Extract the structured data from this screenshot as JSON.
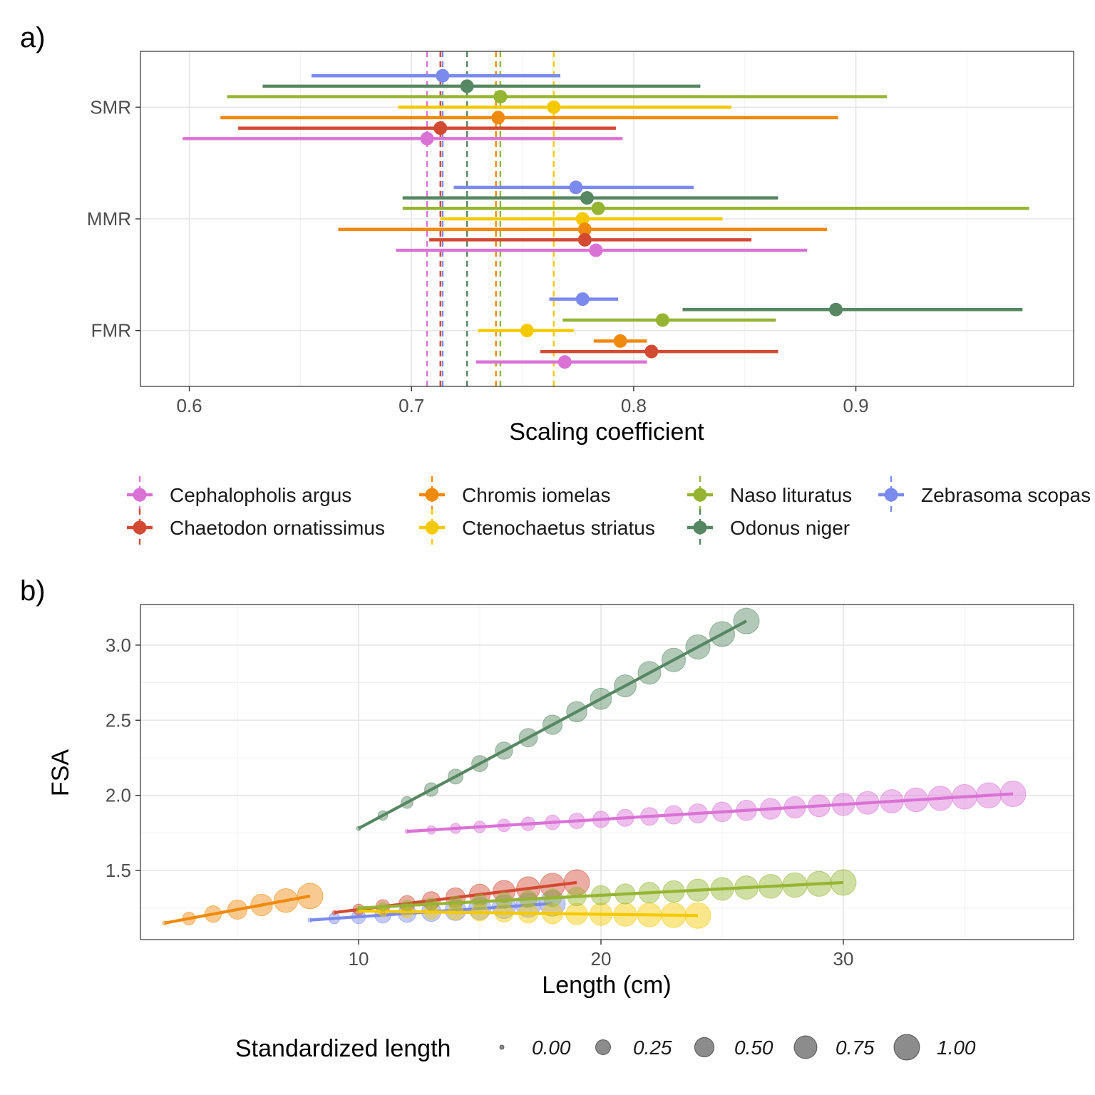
{
  "colors": {
    "Cephalopholis argus": "#DA72D6",
    "Chaetodon ornatissimus": "#D24A32",
    "Chromis iomelas": "#F08A0C",
    "Ctenochaetus striatus": "#F5C900",
    "Naso lituratus": "#95B532",
    "Odonus niger": "#568762",
    "Zebrasoma scopas": "#7A8AED"
  },
  "chart_data": [
    {
      "type": "forest",
      "panel_label": "a)",
      "xlabel": "Scaling coefficient",
      "ylabel": "",
      "xlim": [
        0.578,
        0.998
      ],
      "xticks": [
        0.6,
        0.7,
        0.8,
        0.9
      ],
      "xtick_labels": [
        "0.6",
        "0.7",
        "0.8",
        "0.9"
      ],
      "categories": [
        "SMR",
        "MMR",
        "FMR"
      ],
      "species_order": [
        "Zebrasoma scopas",
        "Odonus niger",
        "Naso lituratus",
        "Ctenochaetus striatus",
        "Chromis iomelas",
        "Chaetodon ornatissimus",
        "Cephalopholis argus"
      ],
      "series": [
        {
          "name": "Cephalopholis argus",
          "SMR": [
            0.707,
            0.597,
            0.795
          ],
          "MMR": [
            0.783,
            0.693,
            0.878
          ],
          "FMR": [
            0.769,
            0.729,
            0.806
          ],
          "ref_line": 0.707
        },
        {
          "name": "Chaetodon ornatissimus",
          "SMR": [
            0.713,
            0.622,
            0.792
          ],
          "MMR": [
            0.778,
            0.708,
            0.853
          ],
          "FMR": [
            0.808,
            0.758,
            0.865
          ],
          "ref_line": 0.713
        },
        {
          "name": "Chromis iomelas",
          "SMR": [
            0.739,
            0.614,
            0.892
          ],
          "MMR": [
            0.778,
            0.667,
            0.887
          ],
          "FMR": [
            0.794,
            0.782,
            0.806
          ],
          "ref_line": 0.738
        },
        {
          "name": "Ctenochaetus striatus",
          "SMR": [
            0.764,
            0.694,
            0.844
          ],
          "MMR": [
            0.777,
            0.713,
            0.84
          ],
          "FMR": [
            0.752,
            0.73,
            0.773
          ],
          "ref_line": 0.764
        },
        {
          "name": "Naso lituratus",
          "SMR": [
            0.74,
            0.617,
            0.914
          ],
          "MMR": [
            0.784,
            0.696,
            0.978
          ],
          "FMR": [
            0.813,
            0.768,
            0.864
          ],
          "ref_line": 0.74
        },
        {
          "name": "Odonus niger",
          "SMR": [
            0.725,
            0.633,
            0.83
          ],
          "MMR": [
            0.779,
            0.696,
            0.865
          ],
          "FMR": [
            0.891,
            0.822,
            0.975
          ],
          "ref_line": 0.725
        },
        {
          "name": "Zebrasoma scopas",
          "SMR": [
            0.714,
            0.655,
            0.767
          ],
          "MMR": [
            0.774,
            0.719,
            0.827
          ],
          "FMR": [
            0.777,
            0.762,
            0.793
          ],
          "ref_line": 0.714
        }
      ]
    },
    {
      "type": "line+scatter",
      "panel_label": "b)",
      "xlabel": "Length (cm)",
      "ylabel": "FSA",
      "xlim": [
        1.0,
        39.5
      ],
      "ylim": [
        1.04,
        3.27
      ],
      "xticks": [
        10,
        20,
        30
      ],
      "xtick_labels": [
        "10",
        "20",
        "30"
      ],
      "yticks": [
        1.5,
        2.0,
        2.5,
        3.0
      ],
      "ytick_labels": [
        "1.5",
        "2.0",
        "2.5",
        "3.0"
      ],
      "series": [
        {
          "name": "Chromis iomelas",
          "x_start": 2,
          "x_end": 8,
          "y_start": 1.15,
          "y_end": 1.33
        },
        {
          "name": "Zebrasoma scopas",
          "x_start": 8,
          "x_end": 18,
          "y_start": 1.17,
          "y_end": 1.28
        },
        {
          "name": "Chaetodon ornatissimus",
          "x_start": 9,
          "x_end": 19,
          "y_start": 1.22,
          "y_end": 1.42
        },
        {
          "name": "Ctenochaetus striatus",
          "x_start": 10,
          "x_end": 24,
          "y_start": 1.23,
          "y_end": 1.2
        },
        {
          "name": "Naso lituratus",
          "x_start": 10,
          "x_end": 30,
          "y_start": 1.25,
          "y_end": 1.42
        },
        {
          "name": "Cephalopholis argus",
          "x_start": 12,
          "x_end": 37,
          "y_start": 1.76,
          "y_end": 2.01
        },
        {
          "name": "Odonus niger",
          "x_start": 10,
          "x_end": 26,
          "y_start": 1.78,
          "y_end": 3.16
        }
      ]
    }
  ],
  "legend": {
    "items": [
      "Cephalopholis argus",
      "Chaetodon ornatissimus",
      "Chromis iomelas",
      "Ctenochaetus striatus",
      "Naso lituratus",
      "Odonus niger",
      "Zebrasoma scopas"
    ],
    "size_title": "Standardized length",
    "size_values": [
      0.0,
      0.25,
      0.5,
      0.75,
      1.0
    ],
    "size_labels": [
      "0.00",
      "0.25",
      "0.50",
      "0.75",
      "1.00"
    ]
  }
}
